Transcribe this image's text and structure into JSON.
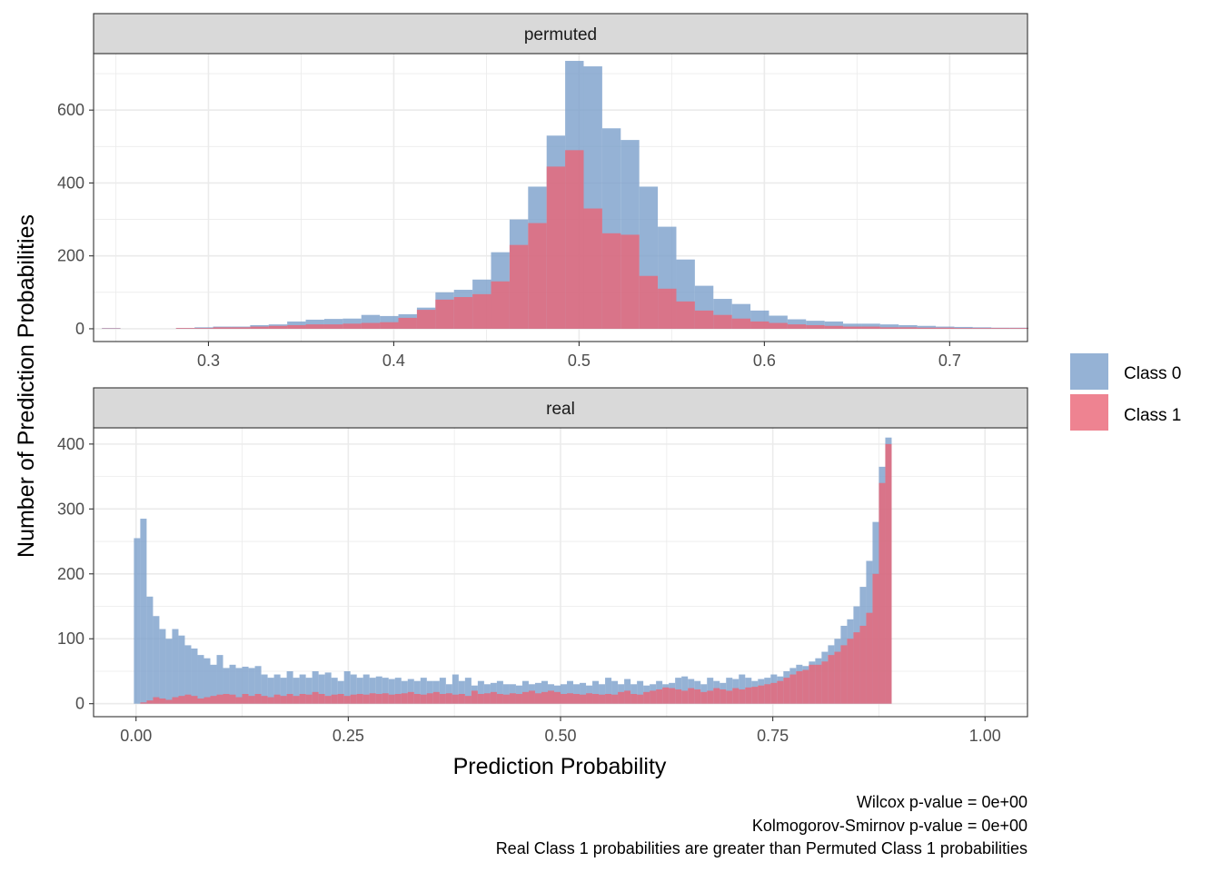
{
  "chart_data": {
    "type": "histogram",
    "ylabel": "Number of Prediction Probabilities",
    "xlabel": "Prediction Probability",
    "legend": {
      "position": "right",
      "entries": [
        {
          "label": "Class 0",
          "color": "#7A9FCB"
        },
        {
          "label": "Class 1",
          "color": "#EA6476"
        }
      ]
    },
    "panels": [
      {
        "strip_label": "permuted",
        "xlim": [
          0.238,
          0.742
        ],
        "ylim": [
          -35,
          755
        ],
        "x_ticks": [
          0.3,
          0.4,
          0.5,
          0.6,
          0.7
        ],
        "x_tick_labels": [
          "0.3",
          "0.4",
          "0.5",
          "0.6",
          "0.7"
        ],
        "y_ticks": [
          0,
          200,
          400,
          600
        ],
        "y_tick_labels": [
          "0",
          "200",
          "400",
          "600"
        ],
        "bin_start": 0.2425,
        "bin_width": 0.01,
        "series": [
          {
            "name": "Class 0",
            "values": [
              2,
              0,
              0,
              0,
              2,
              4,
              6,
              6,
              10,
              12,
              20,
              25,
              27,
              28,
              38,
              35,
              40,
              58,
              100,
              107,
              135,
              210,
              300,
              390,
              530,
              735,
              720,
              550,
              518,
              390,
              280,
              190,
              118,
              82,
              68,
              50,
              36,
              26,
              22,
              20,
              14,
              14,
              12,
              10,
              8,
              6,
              5,
              4,
              3,
              3
            ]
          },
          {
            "name": "Class 1",
            "values": [
              1,
              0,
              0,
              0,
              2,
              2,
              4,
              4,
              6,
              8,
              10,
              12,
              12,
              14,
              16,
              18,
              30,
              52,
              80,
              87,
              95,
              130,
              230,
              290,
              445,
              490,
              330,
              262,
              258,
              145,
              110,
              75,
              50,
              38,
              28,
              20,
              16,
              12,
              10,
              8,
              6,
              6,
              4,
              4,
              3,
              3,
              2,
              2,
              2,
              2
            ]
          }
        ]
      },
      {
        "strip_label": "real",
        "xlim": [
          -0.05,
          1.05
        ],
        "ylim": [
          -20,
          425
        ],
        "x_ticks": [
          0.0,
          0.25,
          0.5,
          0.75,
          1.0
        ],
        "x_tick_labels": [
          "0.00",
          "0.25",
          "0.50",
          "0.75",
          "1.00"
        ],
        "y_ticks": [
          0,
          100,
          200,
          300,
          400
        ],
        "y_tick_labels": [
          "0",
          "100",
          "200",
          "300",
          "400"
        ],
        "bin_start": -0.0025,
        "bin_width": 0.0075,
        "series": [
          {
            "name": "Class 0",
            "values": [
              255,
              285,
              165,
              135,
              115,
              100,
              115,
              105,
              90,
              85,
              75,
              70,
              60,
              75,
              55,
              60,
              55,
              57,
              55,
              58,
              45,
              40,
              45,
              40,
              50,
              40,
              45,
              40,
              50,
              45,
              48,
              40,
              35,
              50,
              45,
              40,
              45,
              40,
              42,
              40,
              38,
              40,
              35,
              38,
              35,
              40,
              35,
              35,
              40,
              30,
              45,
              35,
              40,
              28,
              35,
              30,
              32,
              35,
              30,
              30,
              28,
              35,
              30,
              32,
              35,
              30,
              28,
              30,
              35,
              30,
              32,
              28,
              35,
              30,
              40,
              35,
              30,
              38,
              30,
              35,
              28,
              30,
              35,
              30,
              32,
              40,
              42,
              38,
              35,
              30,
              40,
              35,
              32,
              40,
              38,
              45,
              40,
              35,
              38,
              40,
              45,
              42,
              50,
              55,
              60,
              58,
              65,
              70,
              80,
              90,
              100,
              120,
              130,
              150,
              180,
              220,
              280,
              365,
              410
            ]
          },
          {
            "name": "Class 1",
            "values": [
              0,
              2,
              5,
              10,
              8,
              6,
              10,
              12,
              14,
              12,
              8,
              10,
              12,
              14,
              15,
              14,
              10,
              15,
              12,
              15,
              12,
              10,
              14,
              12,
              15,
              12,
              15,
              14,
              18,
              15,
              12,
              14,
              15,
              12,
              14,
              15,
              14,
              16,
              15,
              16,
              14,
              15,
              16,
              18,
              15,
              14,
              16,
              18,
              15,
              16,
              14,
              15,
              12,
              20,
              15,
              16,
              18,
              15,
              14,
              16,
              15,
              18,
              20,
              16,
              18,
              20,
              18,
              15,
              16,
              15,
              14,
              16,
              15,
              14,
              15,
              14,
              18,
              20,
              15,
              14,
              18,
              20,
              22,
              25,
              24,
              22,
              20,
              24,
              22,
              18,
              20,
              24,
              22,
              20,
              24,
              22,
              25,
              26,
              28,
              30,
              32,
              35,
              40,
              45,
              50,
              52,
              60,
              60,
              65,
              75,
              80,
              90,
              100,
              110,
              120,
              140,
              200,
              340,
              400
            ]
          }
        ]
      }
    ],
    "caption": [
      "Wilcox p-value = 0e+00",
      "Kolmogorov-Smirnov p-value = 0e+00",
      "Real Class 1 probabilities are greater than Permuted Class 1 probabilities"
    ]
  }
}
